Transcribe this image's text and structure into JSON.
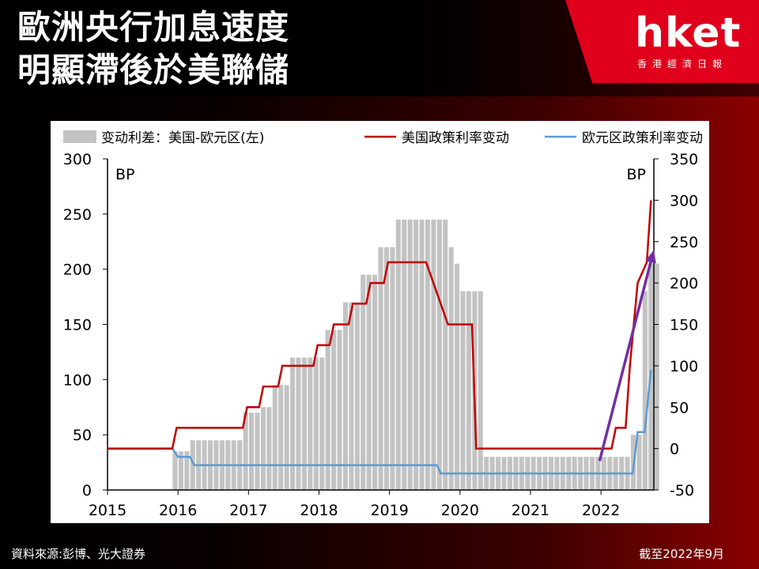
{
  "header": {
    "title_line1": "歐洲央行加息速度",
    "title_line2": "明顯滯後於美聯儲"
  },
  "logo": {
    "text": "hket",
    "subtitle": "香港經濟日報"
  },
  "footer": {
    "source": "資料來源:彭博、光大證券",
    "as_of": "截至2022年9月"
  },
  "colors": {
    "bar": "#c3c3c3",
    "us_line": "#c00000",
    "eu_line": "#5b9bd5",
    "arrow": "#7030a0",
    "brand_red": "#e0001b"
  },
  "chart_data": {
    "type": "bar+line",
    "legend": {
      "placement": "top",
      "items": [
        "变动利差：美国-欧元区(左)",
        "美国政策利率变动",
        "欧元区政策利率变动"
      ]
    },
    "y_left": {
      "range": [
        0,
        300
      ],
      "ticks": [
        0,
        50,
        100,
        150,
        200,
        250,
        300
      ],
      "unit": "BP"
    },
    "y_right": {
      "range": [
        -50,
        350
      ],
      "ticks": [
        -50,
        0,
        50,
        100,
        150,
        200,
        250,
        300,
        350
      ],
      "unit": "BP"
    },
    "x": {
      "range": [
        2015,
        2022.75
      ],
      "ticks": [
        2015,
        2016,
        2017,
        2018,
        2019,
        2020,
        2021,
        2022
      ]
    },
    "bars": {
      "name": "变动利差：美国-欧元区(左)",
      "axis": "left",
      "start": 2015.0,
      "step": 0.0833333,
      "values": [
        0,
        0,
        0,
        0,
        0,
        0,
        0,
        0,
        0,
        0,
        0,
        35,
        35,
        35,
        45,
        45,
        45,
        45,
        45,
        45,
        45,
        45,
        45,
        70,
        70,
        70,
        75,
        75,
        95,
        95,
        95,
        120,
        120,
        120,
        120,
        120,
        120,
        145,
        145,
        145,
        170,
        170,
        170,
        195,
        195,
        195,
        220,
        220,
        220,
        245,
        245,
        245,
        245,
        245,
        245,
        245,
        245,
        245,
        220,
        205,
        180,
        180,
        180,
        180,
        30,
        30,
        30,
        30,
        30,
        30,
        30,
        30,
        30,
        30,
        30,
        30,
        30,
        30,
        30,
        30,
        30,
        30,
        30,
        30,
        30,
        30,
        30,
        30,
        30,
        50,
        50,
        180,
        205,
        205
      ]
    },
    "us_line": {
      "name": "美国政策利率变动",
      "axis": "right",
      "points": [
        [
          2015,
          0
        ],
        [
          2015.92,
          0
        ],
        [
          2015.98,
          25
        ],
        [
          2016.92,
          25
        ],
        [
          2016.98,
          50
        ],
        [
          2017.15,
          50
        ],
        [
          2017.21,
          75
        ],
        [
          2017.42,
          75
        ],
        [
          2017.48,
          100
        ],
        [
          2017.92,
          100
        ],
        [
          2017.98,
          125
        ],
        [
          2018.15,
          125
        ],
        [
          2018.21,
          150
        ],
        [
          2018.42,
          150
        ],
        [
          2018.48,
          175
        ],
        [
          2018.67,
          175
        ],
        [
          2018.73,
          200
        ],
        [
          2018.92,
          200
        ],
        [
          2018.98,
          225
        ],
        [
          2019.52,
          225
        ],
        [
          2019.83,
          150
        ],
        [
          2020.17,
          150
        ],
        [
          2020.23,
          0
        ],
        [
          2022.15,
          0
        ],
        [
          2022.21,
          25
        ],
        [
          2022.35,
          25
        ],
        [
          2022.41,
          100
        ],
        [
          2022.52,
          200
        ],
        [
          2022.65,
          225
        ],
        [
          2022.71,
          300
        ]
      ]
    },
    "eu_line": {
      "name": "欧元区政策利率变动",
      "axis": "right",
      "points": [
        [
          2015,
          0
        ],
        [
          2015.92,
          0
        ],
        [
          2016.0,
          -10
        ],
        [
          2016.17,
          -10
        ],
        [
          2016.23,
          -20
        ],
        [
          2019.67,
          -20
        ],
        [
          2019.73,
          -30
        ],
        [
          2022.45,
          -30
        ],
        [
          2022.52,
          20
        ],
        [
          2022.62,
          20
        ],
        [
          2022.71,
          95
        ]
      ]
    },
    "arrow": {
      "from": [
        2021.98,
        -15
      ],
      "to": [
        2022.75,
        240
      ],
      "axis": "right"
    }
  }
}
